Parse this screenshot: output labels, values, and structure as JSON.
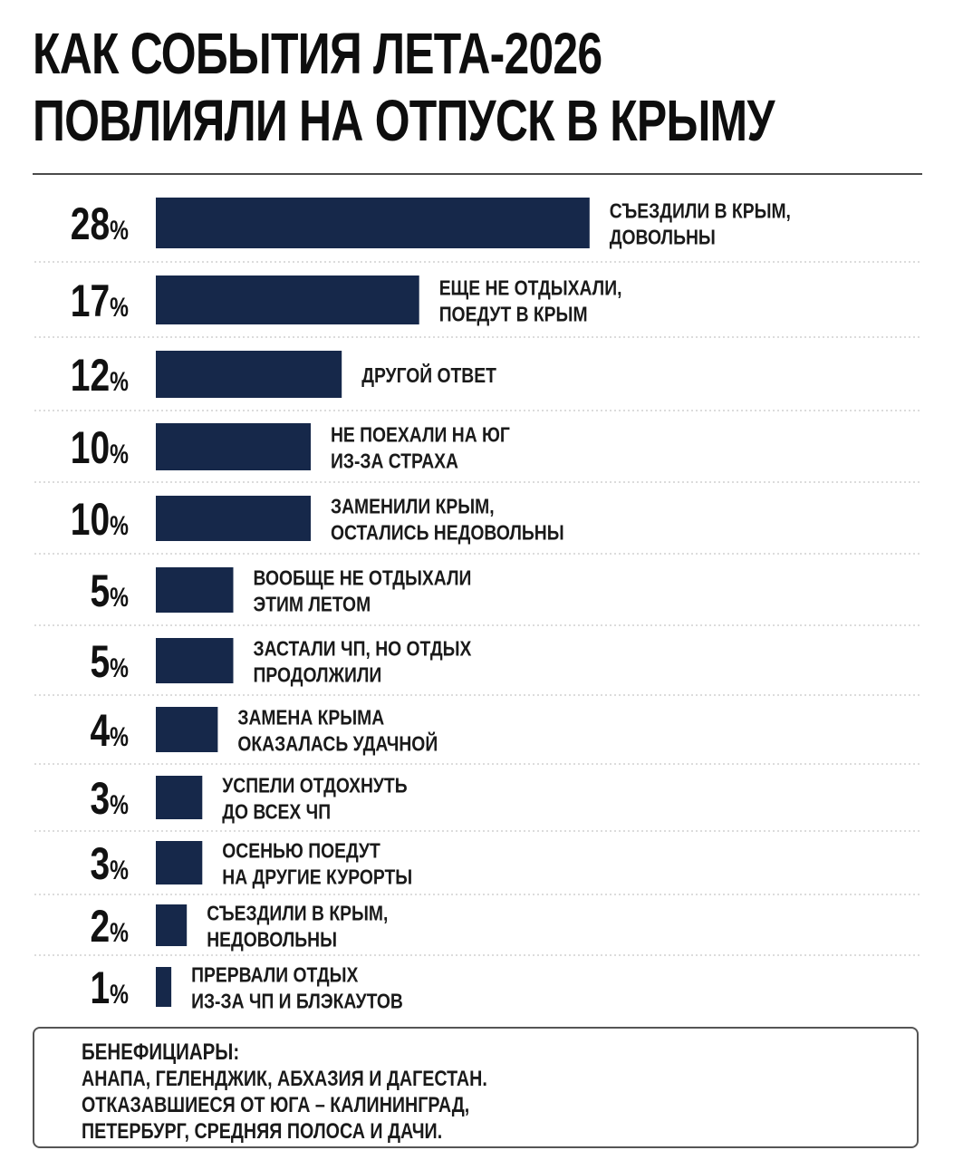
{
  "title": {
    "line1": "КАК СОБЫТИЯ ЛЕТА-2026",
    "line2": "ПОВЛИЯЛИ НА ОТПУСК В КРЫМУ"
  },
  "chart_data": {
    "type": "bar",
    "orientation": "horizontal",
    "title": "КАК СОБЫТИЯ ЛЕТА-2026 ПОВЛИЯЛИ НА ОТПУСК В КРЫМУ",
    "unit": "%",
    "bar_color": "#16284a",
    "categories": [
      [
        "СЪЕЗДИЛИ В КРЫМ,",
        "ДОВОЛЬНЫ"
      ],
      [
        "ЕЩЕ НЕ ОТДЫХАЛИ,",
        "ПОЕДУТ В КРЫМ"
      ],
      [
        "ДРУГОЙ ОТВЕТ"
      ],
      [
        "НЕ ПОЕХАЛИ НА ЮГ",
        "ИЗ-ЗА СТРАХА"
      ],
      [
        "ЗАМЕНИЛИ КРЫМ,",
        "ОСТАЛИСЬ НЕДОВОЛЬНЫ"
      ],
      [
        "ВООБЩЕ НЕ ОТДЫХАЛИ",
        "ЭТИМ ЛЕТОМ"
      ],
      [
        "ЗАСТАЛИ ЧП, НО ОТДЫХ",
        "ПРОДОЛЖИЛИ"
      ],
      [
        "ЗАМЕНА КРЫМА",
        "ОКАЗАЛАСЬ УДАЧНОЙ"
      ],
      [
        "УСПЕЛИ ОТДОХНУТЬ",
        "ДО ВСЕХ ЧП"
      ],
      [
        "ОСЕНЬЮ ПОЕДУТ",
        "НА ДРУГИЕ КУРОРТЫ"
      ],
      [
        "СЪЕЗДИЛИ В КРЫМ,",
        "НЕДОВОЛЬНЫ"
      ],
      [
        "ПРЕРВАЛИ ОТДЫХ",
        "ИЗ-ЗА ЧП И БЛЭКАУТОВ"
      ]
    ],
    "values": [
      28,
      17,
      12,
      10,
      10,
      5,
      5,
      4,
      3,
      3,
      2,
      1
    ]
  },
  "note": {
    "heading": "БЕНЕФИЦИАРЫ:",
    "lines": [
      "АНАПА, ГЕЛЕНДЖИК, АБХАЗИЯ И ДАГЕСТАН.",
      "ОТКАЗАВШИЕСЯ ОТ ЮГА – КАЛИНИНГРАД,",
      "ПЕТЕРБУРГ, СРЕДНЯЯ ПОЛОСА И ДАЧИ."
    ]
  }
}
